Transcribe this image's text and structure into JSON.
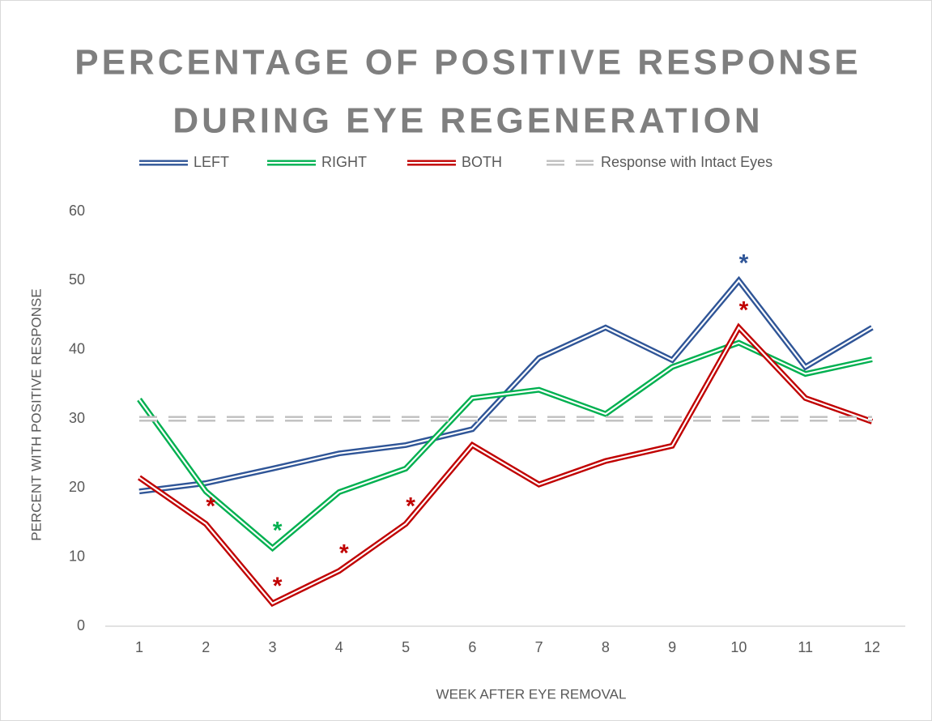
{
  "chart_data": {
    "type": "line",
    "title": [
      "PERCENTAGE OF POSITIVE RESPONSE",
      "DURING EYE REGENERATION"
    ],
    "x_label": "WEEK AFTER EYE REMOVAL",
    "y_label": "PERCENT WITH POSITIVE RESPONSE",
    "categories": [
      "1",
      "2",
      "3",
      "4",
      "5",
      "6",
      "7",
      "8",
      "9",
      "10",
      "11",
      "12"
    ],
    "series": [
      {
        "name": "LEFT",
        "color": "#2f5597",
        "style": "double",
        "values": [
          19.5,
          20.7,
          22.8,
          25,
          26.2,
          28.5,
          38.8,
          43.2,
          38.5,
          50,
          37.5,
          43.2
        ]
      },
      {
        "name": "RIGHT",
        "color": "#00b050",
        "style": "double",
        "values": [
          32.8,
          19.5,
          11.3,
          19.4,
          22.8,
          33,
          34.2,
          30.7,
          37.5,
          41,
          36.5,
          38.6
        ]
      },
      {
        "name": "BOTH",
        "color": "#c00000",
        "style": "double",
        "values": [
          21.5,
          14.8,
          3.3,
          8,
          14.8,
          26.2,
          20.5,
          23.9,
          26.1,
          43.2,
          33,
          29.6
        ]
      },
      {
        "name": "Response with Intact Eyes",
        "color": "#bfbfbf",
        "style": "dashed-double",
        "values": [
          30,
          30,
          30,
          30,
          30,
          30,
          30,
          30,
          30,
          30,
          30,
          30
        ]
      }
    ],
    "annotations": [
      {
        "text": "*",
        "series": 0,
        "index": 9
      },
      {
        "text": "*",
        "series": 1,
        "index": 2
      },
      {
        "text": "*",
        "series": 2,
        "index": 1
      },
      {
        "text": "*",
        "series": 2,
        "index": 2
      },
      {
        "text": "*",
        "series": 2,
        "index": 3
      },
      {
        "text": "*",
        "series": 2,
        "index": 4
      },
      {
        "text": "*",
        "series": 2,
        "index": 9
      }
    ],
    "ylim": [
      0,
      60
    ],
    "yticks": [
      0,
      10,
      20,
      30,
      40,
      50,
      60
    ],
    "grid": false,
    "legend": "top"
  }
}
